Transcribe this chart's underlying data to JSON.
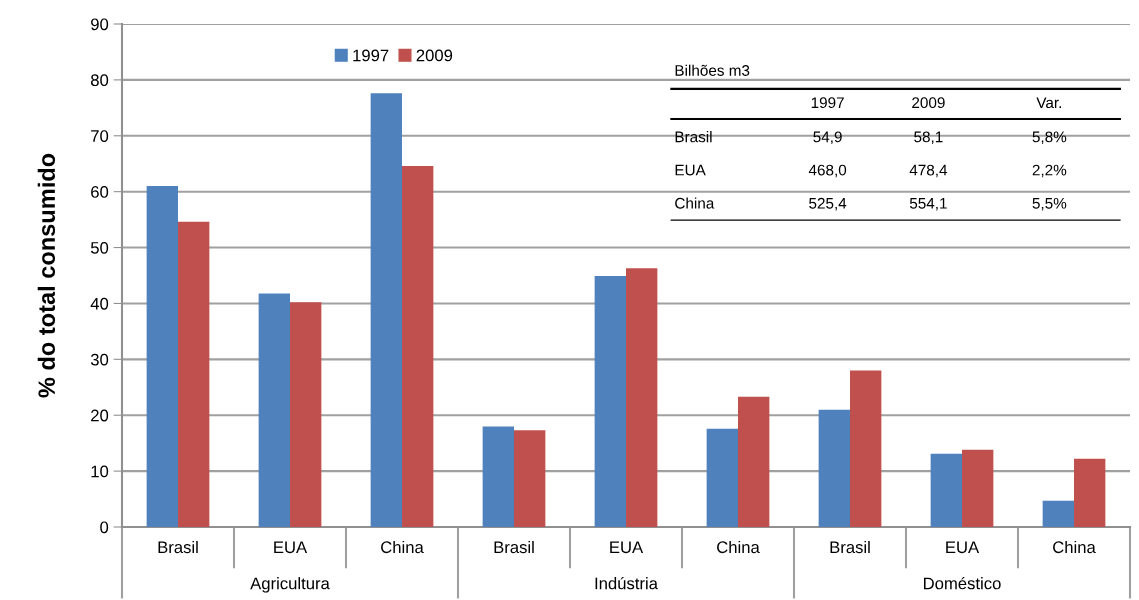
{
  "chart_data": {
    "type": "bar",
    "ylabel": "% do total consumido",
    "categories": [
      "Brasil",
      "EUA",
      "China",
      "Brasil",
      "EUA",
      "China",
      "Brasil",
      "EUA",
      "China"
    ],
    "series": [
      {
        "name": "1997",
        "color": "#4f81bd",
        "values": [
          61.0,
          41.8,
          77.6,
          18.0,
          44.9,
          17.6,
          21.0,
          13.1,
          4.7
        ]
      },
      {
        "name": "2009",
        "color": "#c0504d",
        "values": [
          54.6,
          40.2,
          64.6,
          17.3,
          46.3,
          23.3,
          28.0,
          13.8,
          12.2
        ]
      }
    ],
    "ylim": [
      0,
      90
    ],
    "yticks": [
      0,
      10,
      20,
      30,
      40,
      50,
      60,
      70,
      80,
      90
    ],
    "grid": "y",
    "legend": "top",
    "annotations": [
      "Agricultura",
      "Indústria",
      "Doméstico",
      "Bilhões m3",
      "1997",
      "2009",
      "Var.",
      "Brasil",
      "54,9",
      "58,1",
      "5,8%",
      "EUA",
      "468,0",
      "478,4",
      "2,2%",
      "China",
      "525,4",
      "554,1",
      "5,5%"
    ]
  }
}
